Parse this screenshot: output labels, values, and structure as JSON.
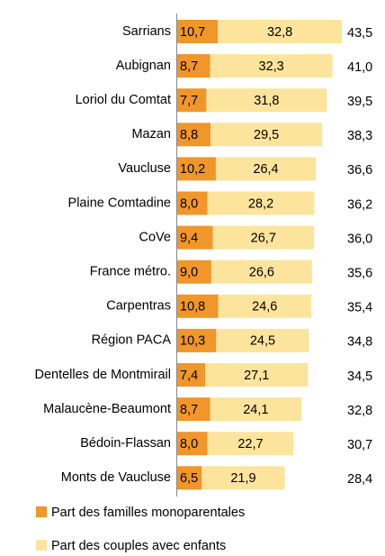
{
  "chart_data": {
    "type": "stacked-bar-horizontal",
    "categories": [
      "Sarrians",
      "Aubignan",
      "Loriol du Comtat",
      "Mazan",
      "Vaucluse",
      "Plaine Comtadine",
      "CoVe",
      "France métro.",
      "Carpentras",
      "Région PACA",
      "Dentelles de Montmirail",
      "Malaucène-Beaumont",
      "Bédoin-Flassan",
      "Monts de Vaucluse"
    ],
    "series": [
      {
        "name": "Part des familles monoparentales",
        "color": "#f0962a",
        "values": [
          10.7,
          8.7,
          7.7,
          8.8,
          10.2,
          8.0,
          9.4,
          9.0,
          10.8,
          10.3,
          7.4,
          8.7,
          8.0,
          6.5
        ],
        "value_labels": [
          "10,7",
          "8,7",
          "7,7",
          "8,8",
          "10,2",
          "8,0",
          "9,4",
          "9,0",
          "10,8",
          "10,3",
          "7,4",
          "8,7",
          "8,0",
          "6,5"
        ]
      },
      {
        "name": "Part des couples avec enfants",
        "color": "#fde49c",
        "values": [
          32.8,
          32.3,
          31.8,
          29.5,
          26.4,
          28.2,
          26.7,
          26.6,
          24.6,
          24.5,
          27.1,
          24.1,
          22.7,
          21.9
        ],
        "value_labels": [
          "32,8",
          "32,3",
          "31,8",
          "29,5",
          "26,4",
          "28,2",
          "26,7",
          "26,6",
          "24,6",
          "24,5",
          "27,1",
          "24,1",
          "22,7",
          "21,9"
        ]
      }
    ],
    "totals": [
      43.5,
      41.0,
      39.5,
      38.3,
      36.6,
      36.2,
      36.0,
      35.6,
      35.4,
      34.8,
      34.5,
      32.8,
      30.7,
      28.4
    ],
    "total_labels": [
      "43,5",
      "41,0",
      "39,5",
      "38,3",
      "36,6",
      "36,2",
      "36,0",
      "35,6",
      "35,4",
      "34,8",
      "34,5",
      "32,8",
      "30,7",
      "28,4"
    ]
  }
}
